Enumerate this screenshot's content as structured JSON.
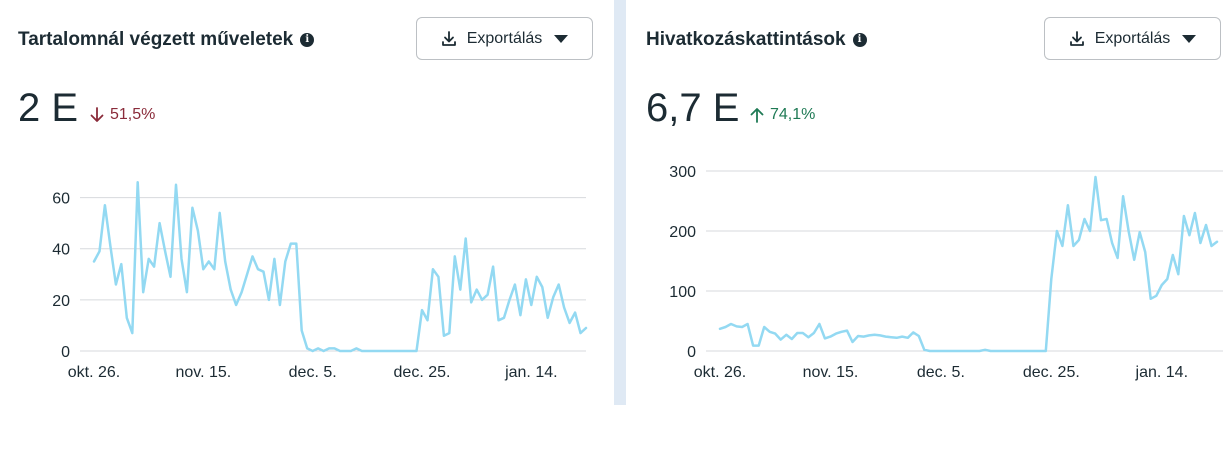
{
  "panels": [
    {
      "title": "Tartalomnál végzett műveletek",
      "info_icon": "info-icon",
      "export_label": "Exportálás",
      "value": "2 E",
      "change": {
        "direction": "down",
        "text": "51,5%",
        "color": "#8a2b3a"
      }
    },
    {
      "title": "Hivatkozáskattintások",
      "info_icon": "info-icon",
      "export_label": "Exportálás",
      "value": "6,7 E",
      "change": {
        "direction": "up",
        "text": "74,1%",
        "color": "#1f7a55"
      }
    }
  ],
  "chart_data": [
    {
      "type": "line",
      "title": "Tartalomnál végzett műveletek",
      "xlabel": "",
      "ylabel": "",
      "x_ticks": [
        "okt. 26.",
        "nov. 15.",
        "dec. 5.",
        "dec. 25.",
        "jan. 14."
      ],
      "x_tick_indices": [
        0,
        20,
        40,
        60,
        80
      ],
      "y_ticks": [
        0,
        20,
        40,
        60
      ],
      "ylim": [
        0,
        70
      ],
      "grid": true,
      "line_color": "#93d9f2",
      "values": [
        35,
        39,
        57,
        41,
        26,
        34,
        13,
        7,
        66,
        23,
        36,
        33,
        50,
        39,
        29,
        65,
        36,
        23,
        56,
        47,
        32,
        35,
        32,
        54,
        35,
        24,
        18,
        23,
        30,
        37,
        32,
        31,
        20,
        36,
        18,
        35,
        42,
        42,
        8,
        1,
        0,
        1,
        0,
        1,
        1,
        0,
        0,
        0,
        1,
        0,
        0,
        0,
        0,
        0,
        0,
        0,
        0,
        0,
        0,
        0,
        16,
        12,
        32,
        29,
        6,
        7,
        37,
        24,
        44,
        19,
        24,
        20,
        22,
        33,
        12,
        13,
        20,
        26,
        14,
        28,
        18,
        29,
        25,
        13,
        21,
        26,
        17,
        11,
        15,
        7,
        9
      ]
    },
    {
      "type": "line",
      "title": "Hivatkozáskattintások",
      "xlabel": "",
      "ylabel": "",
      "x_ticks": [
        "okt. 26.",
        "nov. 15.",
        "dec. 5.",
        "dec. 25.",
        "jan. 14."
      ],
      "x_tick_indices": [
        0,
        20,
        40,
        60,
        80
      ],
      "y_ticks": [
        0,
        100,
        200,
        300
      ],
      "ylim": [
        0,
        320
      ],
      "grid": true,
      "line_color": "#93d9f2",
      "values": [
        37,
        40,
        45,
        41,
        40,
        45,
        9,
        9,
        40,
        32,
        29,
        19,
        27,
        20,
        30,
        30,
        23,
        30,
        45,
        21,
        24,
        29,
        32,
        34,
        15,
        25,
        24,
        26,
        27,
        26,
        24,
        23,
        22,
        24,
        22,
        31,
        25,
        2,
        0,
        0,
        0,
        0,
        0,
        0,
        0,
        0,
        0,
        0,
        2,
        0,
        0,
        0,
        0,
        0,
        0,
        0,
        0,
        0,
        0,
        0,
        120,
        200,
        175,
        243,
        175,
        185,
        220,
        200,
        290,
        218,
        220,
        180,
        155,
        258,
        200,
        152,
        198,
        165,
        87,
        92,
        110,
        120,
        160,
        128,
        225,
        193,
        230,
        180,
        210,
        175,
        182
      ]
    }
  ]
}
